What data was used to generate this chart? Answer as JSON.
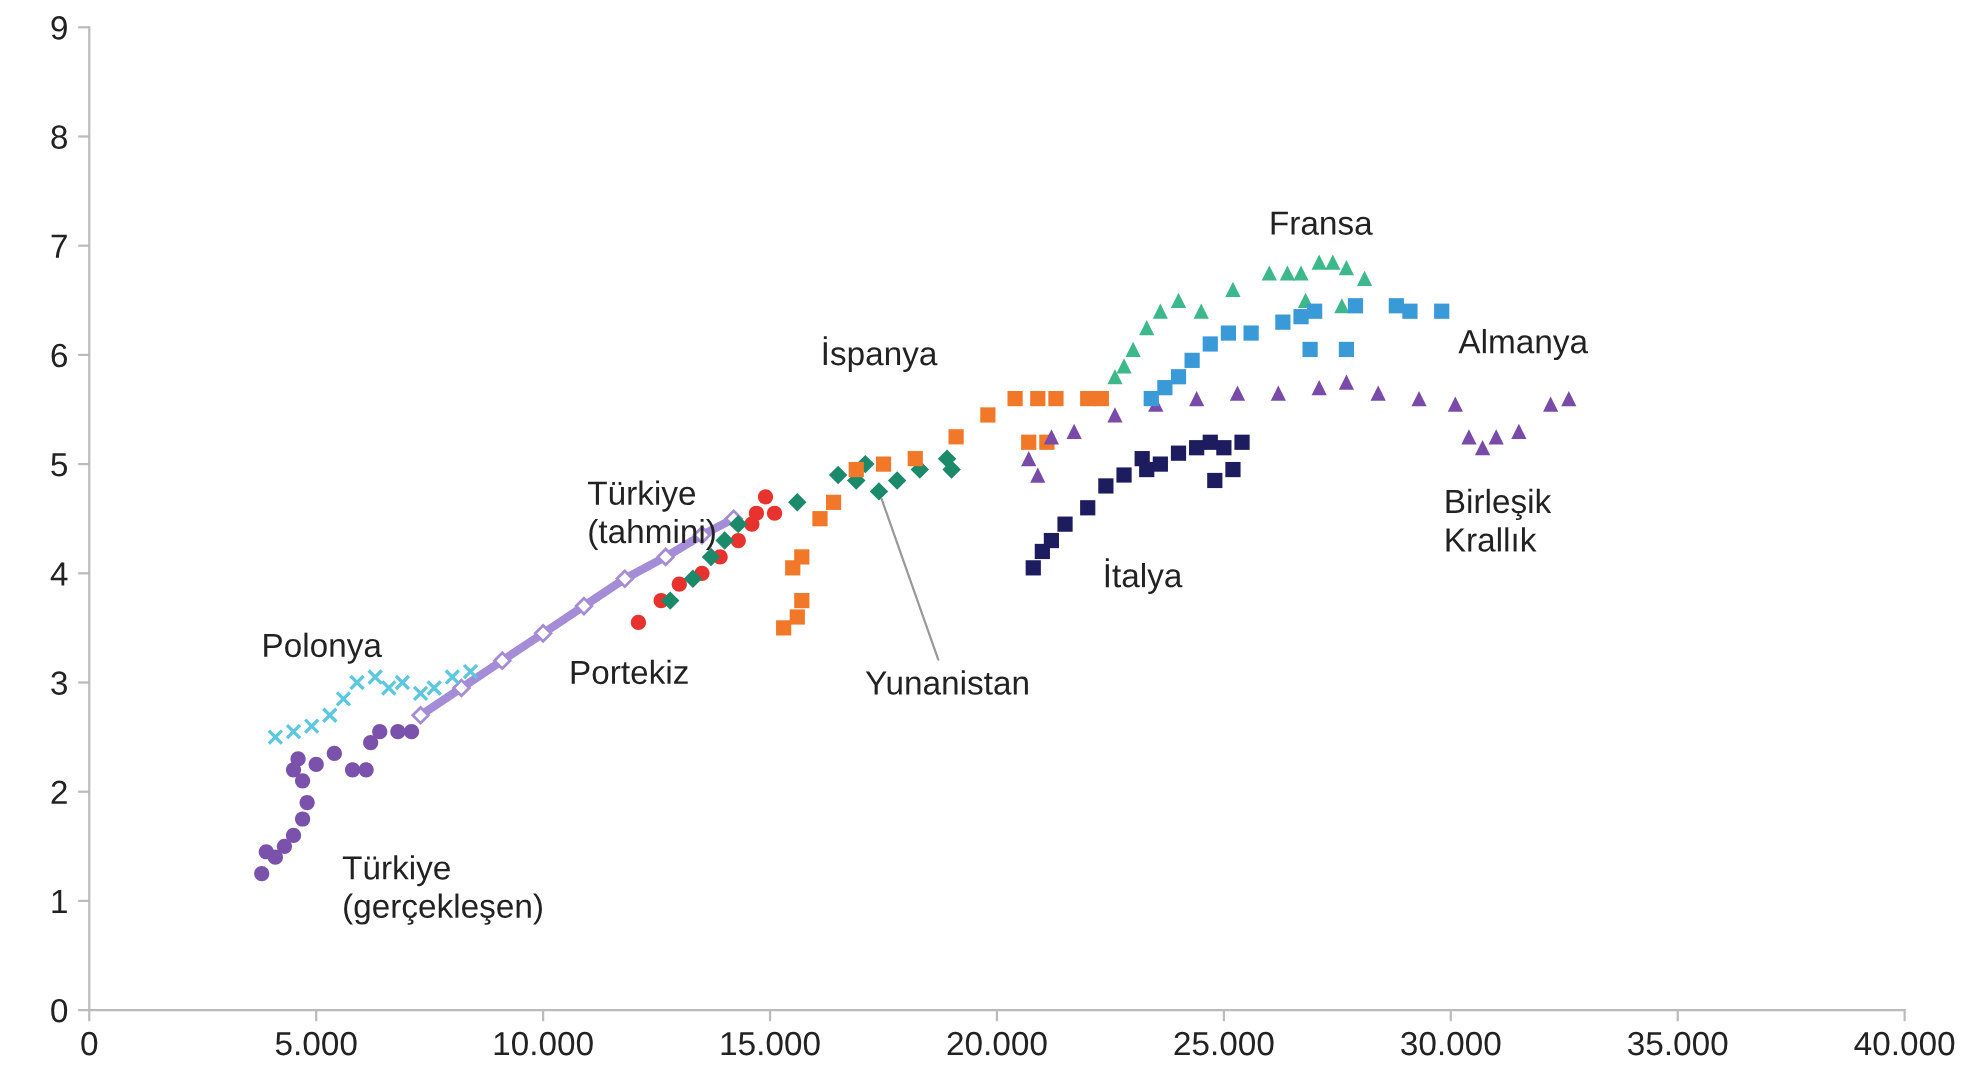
{
  "chart_data": {
    "type": "scatter",
    "xlim": [
      0,
      40000
    ],
    "ylim": [
      0,
      9
    ],
    "xticks": [
      0,
      {
        "value": 5000,
        "label": "5.000"
      },
      {
        "value": 10000,
        "label": "10.000"
      },
      {
        "value": 15000,
        "label": "15.000"
      },
      {
        "value": 20000,
        "label": "20.000"
      },
      {
        "value": 25000,
        "label": "25.000"
      },
      {
        "value": 30000,
        "label": "30.000"
      },
      {
        "value": 35000,
        "label": "35.000"
      },
      {
        "value": 40000,
        "label": "40.000"
      }
    ],
    "yticks": [
      0,
      1,
      2,
      3,
      4,
      5,
      6,
      7,
      8,
      9
    ],
    "grid": false,
    "legend": false,
    "series": [
      {
        "name": "Türkiye\n(gerçekleşen)",
        "color": "#7b52ab",
        "marker": "circle",
        "x": [
          3800,
          3900,
          4100,
          4300,
          4500,
          4700,
          4800,
          4700,
          4500,
          4600,
          5000,
          5400,
          5800,
          6100,
          6200,
          6400,
          6800,
          7100
        ],
        "values": [
          1.25,
          1.45,
          1.4,
          1.5,
          1.6,
          1.75,
          1.9,
          2.1,
          2.2,
          2.3,
          2.25,
          2.35,
          2.2,
          2.2,
          2.45,
          2.55,
          2.55,
          2.55
        ]
      },
      {
        "name": "Türkiye\n(tahmini)",
        "type": "line",
        "color": "#a58cd6",
        "marker": "diamond",
        "x": [
          7300,
          8200,
          9100,
          10000,
          10900,
          11800,
          12700,
          13500,
          14200
        ],
        "values": [
          2.7,
          2.95,
          3.2,
          3.45,
          3.7,
          3.95,
          4.15,
          4.35,
          4.5
        ]
      },
      {
        "name": "Polonya",
        "color": "#5bc8e0",
        "marker": "cross",
        "x": [
          4100,
          4500,
          4900,
          5300,
          5600,
          5900,
          6300,
          6600,
          6900,
          7300,
          7600,
          8000,
          8400
        ],
        "values": [
          2.5,
          2.55,
          2.6,
          2.7,
          2.85,
          3.0,
          3.05,
          2.95,
          3.0,
          2.9,
          2.95,
          3.05,
          3.1
        ]
      },
      {
        "name": "Portekiz",
        "color": "#e8322e",
        "marker": "circle",
        "x": [
          12100,
          12600,
          13000,
          13500,
          13900,
          14300,
          14600,
          14800,
          15000,
          15100,
          14700,
          14900
        ],
        "values": [
          3.55,
          3.75,
          3.9,
          4.0,
          4.15,
          4.3,
          4.45,
          null,
          null,
          4.55,
          4.55,
          4.7
        ]
      },
      {
        "name": "Yunanistan",
        "color": "#1a8a6a",
        "marker": "diamond",
        "x": [
          12800,
          13300,
          13700,
          14000,
          14300,
          15600,
          16000,
          16500,
          16900,
          17100,
          17400,
          17800,
          18300,
          18900,
          19000
        ],
        "values": [
          3.75,
          3.95,
          4.15,
          4.3,
          4.45,
          4.65,
          null,
          4.9,
          4.85,
          5.0,
          4.75,
          4.85,
          4.95,
          5.05,
          4.95
        ]
      },
      {
        "name": "İspanya",
        "color": "#f07828",
        "marker": "square",
        "x": [
          15300,
          15600,
          15700,
          15500,
          15700,
          16100,
          16400,
          16900,
          17500,
          18200,
          19100,
          19800,
          20400,
          20900,
          21300,
          22000,
          22300,
          20700,
          21100
        ],
        "values": [
          3.5,
          3.6,
          3.75,
          4.05,
          4.15,
          4.5,
          4.65,
          4.95,
          5.0,
          5.05,
          5.25,
          5.45,
          5.6,
          5.6,
          5.6,
          5.6,
          5.6,
          5.2,
          5.2
        ]
      },
      {
        "name": "Birleşik\nKrallık",
        "color": "#7a4aa8",
        "marker": "triangle",
        "x": [
          20700,
          20900,
          21200,
          21700,
          22600,
          23500,
          24400,
          25300,
          26200,
          27100,
          27700,
          28400,
          29300,
          30100,
          30400,
          30700,
          31000,
          31500,
          32200,
          32600
        ],
        "values": [
          5.05,
          4.9,
          5.25,
          5.3,
          5.45,
          5.55,
          5.6,
          5.65,
          5.65,
          5.7,
          5.75,
          5.65,
          5.6,
          5.55,
          5.25,
          5.15,
          5.25,
          5.3,
          5.55,
          5.6
        ]
      },
      {
        "name": "İtalya",
        "color": "#1c1c5e",
        "marker": "square",
        "x": [
          20800,
          21000,
          21200,
          21500,
          22000,
          22400,
          22800,
          23300,
          23600,
          23200,
          24000,
          24400,
          24700,
          25000,
          25400,
          24800,
          25200
        ],
        "values": [
          4.05,
          4.2,
          4.3,
          4.45,
          4.6,
          4.8,
          4.9,
          4.95,
          5.0,
          5.05,
          5.1,
          5.15,
          5.2,
          5.15,
          5.2,
          4.85,
          4.95
        ]
      },
      {
        "name": "Fransa",
        "color": "#3cb88a",
        "marker": "triangle",
        "x": [
          22600,
          22800,
          23000,
          23300,
          23600,
          24000,
          24500,
          25200,
          26000,
          26400,
          26700,
          27100,
          27400,
          27700,
          28100,
          26800,
          27600
        ],
        "values": [
          5.8,
          5.9,
          6.05,
          6.25,
          6.4,
          6.5,
          6.4,
          6.6,
          6.75,
          6.75,
          6.75,
          6.85,
          6.85,
          6.8,
          6.7,
          6.5,
          6.45
        ]
      },
      {
        "name": "Almanya",
        "color": "#3a9ad8",
        "marker": "square",
        "x": [
          23400,
          23700,
          24000,
          24300,
          24700,
          25100,
          25600,
          26300,
          26700,
          27000,
          27900,
          28800,
          29100,
          29800,
          26900,
          27700
        ],
        "values": [
          5.6,
          5.7,
          5.8,
          5.95,
          6.1,
          6.2,
          6.2,
          6.3,
          6.35,
          6.4,
          6.45,
          6.45,
          6.4,
          6.4,
          6.05,
          6.05
        ]
      }
    ]
  }
}
